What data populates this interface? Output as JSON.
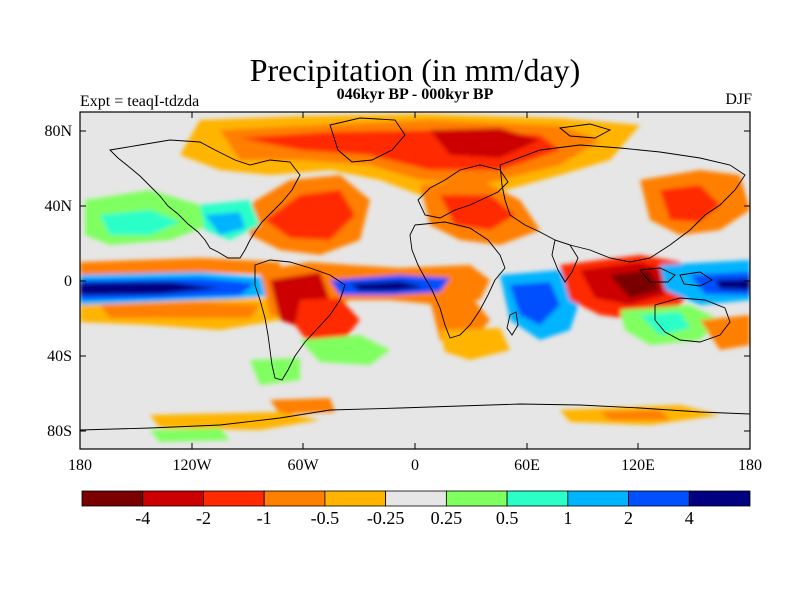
{
  "title": "Precipitation (in mm/day)",
  "subtitle": "046kyr BP - 000kyr BP",
  "experiment_label": "Expt = teaqI-tdzda",
  "season": "DJF",
  "lat_labels": [
    "80N",
    "40N",
    "0",
    "40S",
    "80S"
  ],
  "lon_labels": [
    "180",
    "120W",
    "60W",
    "0",
    "60E",
    "120E",
    "180"
  ],
  "colorbar": {
    "colors": [
      "#7a0000",
      "#cc0000",
      "#ff2a00",
      "#ff7f00",
      "#ffb400",
      "#e6e6e6",
      "#80ff60",
      "#2affc8",
      "#00b4ff",
      "#0050ff",
      "#000080"
    ],
    "labels": [
      "-4",
      "-2",
      "-1",
      "-0.5",
      "-0.25",
      "0.25",
      "0.5",
      "1",
      "2",
      "4"
    ]
  },
  "colors": {
    "land_outline": "#000000",
    "neutral": "#e6e6e6"
  }
}
